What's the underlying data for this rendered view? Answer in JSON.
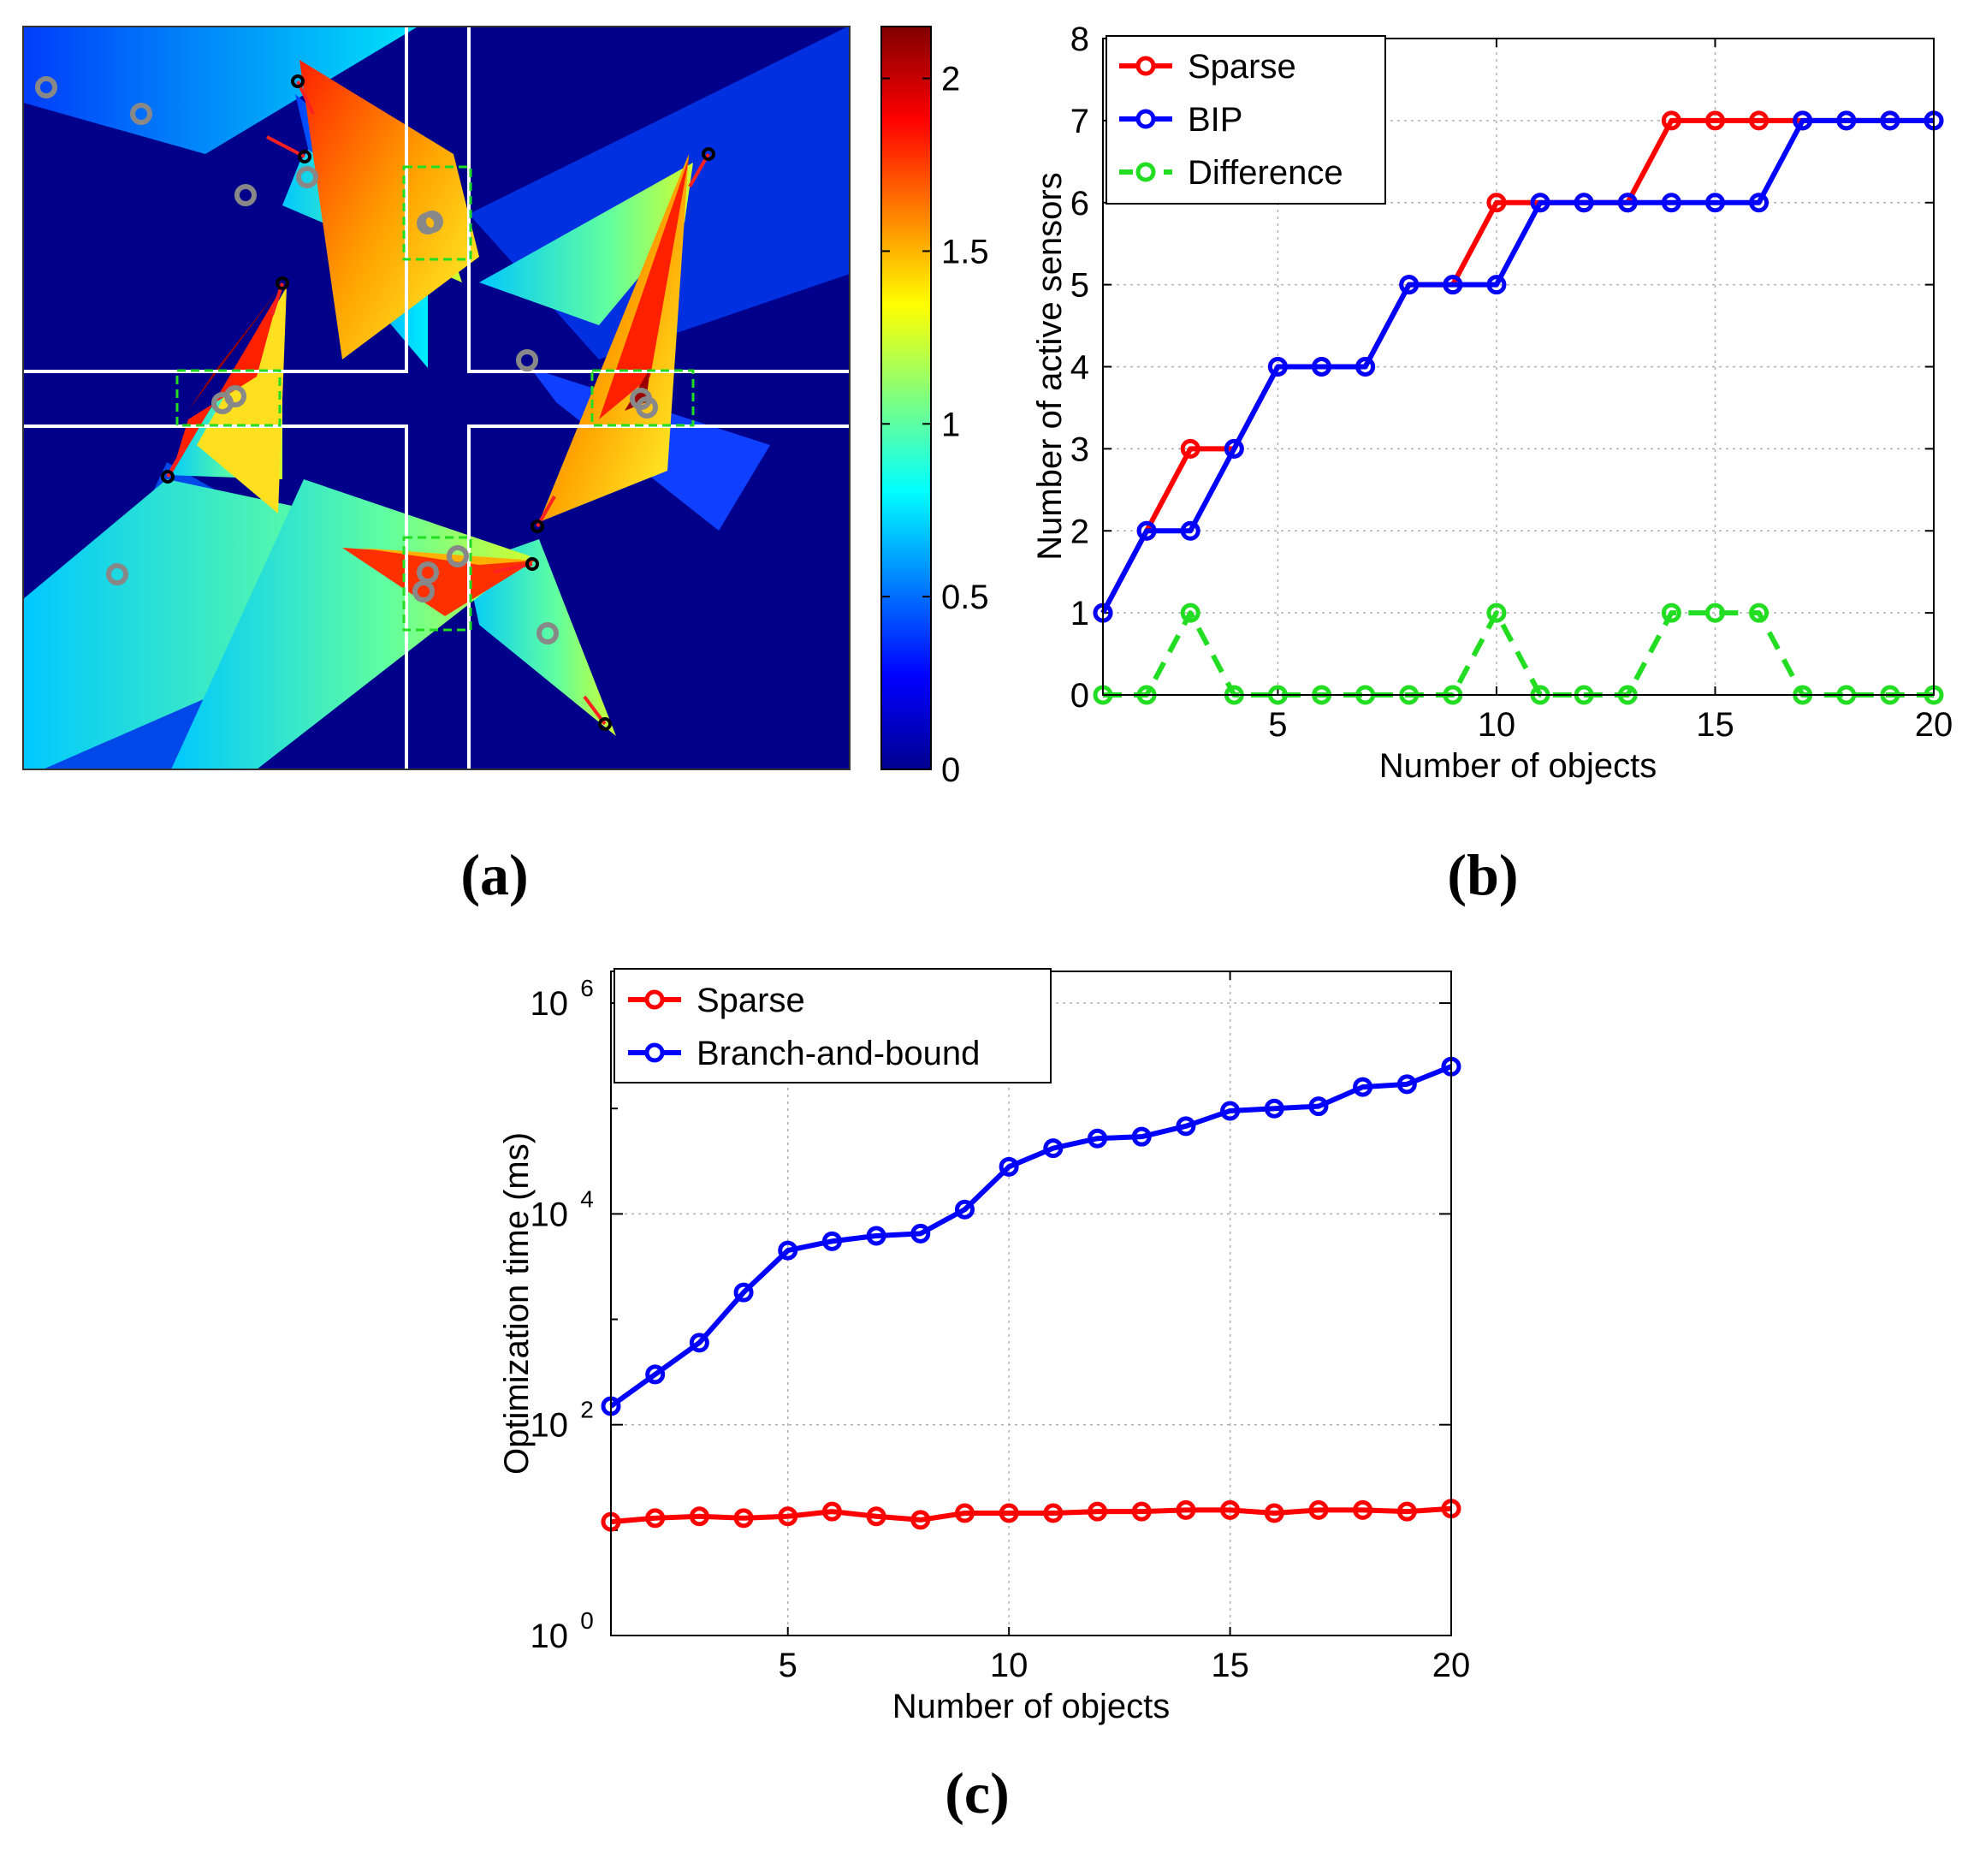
{
  "panels": {
    "a": {
      "label_open": "(",
      "label_letter": "a",
      "label_close": ")"
    },
    "b": {
      "label_open": "(",
      "label_letter": "b",
      "label_close": ")"
    },
    "c": {
      "label_open": "(",
      "label_letter": "c",
      "label_close": ")"
    }
  },
  "heatmap": {
    "colorbar_ticks": [
      "0",
      "0.5",
      "1",
      "1.5",
      "2"
    ],
    "colorbar_values": [
      0,
      0.5,
      1,
      1.5,
      2
    ],
    "colorbar_max": 2.15,
    "colors": {
      "floor": "#00008b",
      "wall": "#ffffff",
      "region": "#22dd22",
      "sensor": "#000000",
      "sensor_dir": "#ff2020",
      "object": "#888888"
    }
  },
  "chart_data": [
    {
      "id": "b",
      "type": "line",
      "title": "",
      "xlabel": "Number of objects",
      "ylabel": "Number of active sensors",
      "xlim": [
        1,
        20
      ],
      "ylim": [
        0,
        8
      ],
      "xticks": [
        5,
        10,
        15,
        20
      ],
      "yticks": [
        0,
        1,
        2,
        3,
        4,
        5,
        6,
        7,
        8
      ],
      "grid": true,
      "legend_position": "top-left",
      "x": [
        1,
        2,
        3,
        4,
        5,
        6,
        7,
        8,
        9,
        10,
        11,
        12,
        13,
        14,
        15,
        16,
        17,
        18,
        19,
        20
      ],
      "series": [
        {
          "name": "Sparse",
          "color": "#ff0000",
          "dashed": false,
          "values": [
            1,
            2,
            3,
            3,
            4,
            4,
            4,
            5,
            5,
            6,
            6,
            6,
            6,
            7,
            7,
            7,
            7,
            7,
            7,
            7
          ]
        },
        {
          "name": "BIP",
          "color": "#0000ff",
          "dashed": false,
          "values": [
            1,
            2,
            2,
            3,
            4,
            4,
            4,
            5,
            5,
            5,
            6,
            6,
            6,
            6,
            6,
            6,
            7,
            7,
            7,
            7
          ]
        },
        {
          "name": "Difference",
          "color": "#22dd22",
          "dashed": true,
          "values": [
            0,
            0,
            1,
            0,
            0,
            0,
            0,
            0,
            0,
            1,
            0,
            0,
            0,
            1,
            1,
            1,
            0,
            0,
            0,
            0
          ]
        }
      ]
    },
    {
      "id": "c",
      "type": "line",
      "title": "",
      "xlabel": "Number of objects",
      "ylabel": "Optimization time (ms)",
      "yscale": "log",
      "xlim": [
        1,
        20
      ],
      "ylim": [
        1,
        2000000
      ],
      "xticks": [
        5,
        10,
        15,
        20
      ],
      "ytick_base": "10",
      "ytick_exponents": [
        "0",
        "2",
        "4",
        "6"
      ],
      "grid": true,
      "legend_position": "top-left",
      "x": [
        1,
        2,
        3,
        4,
        5,
        6,
        7,
        8,
        9,
        10,
        11,
        12,
        13,
        14,
        15,
        16,
        17,
        18,
        19,
        20
      ],
      "series": [
        {
          "name": "Sparse",
          "color": "#ff0000",
          "dashed": false,
          "values": [
            12,
            13,
            13.5,
            13,
            13.5,
            15,
            13.5,
            12.5,
            14.5,
            14.5,
            14.5,
            15,
            15,
            15.5,
            15.5,
            14.5,
            15.5,
            15.5,
            15,
            16
          ]
        },
        {
          "name": "Branch-and-bound",
          "color": "#0000ff",
          "dashed": false,
          "values": [
            150,
            300,
            600,
            1800,
            4500,
            5500,
            6200,
            6500,
            11000,
            28000,
            42000,
            52000,
            54000,
            68000,
            95000,
            100000,
            105000,
            160000,
            170000,
            250000
          ]
        }
      ]
    }
  ]
}
